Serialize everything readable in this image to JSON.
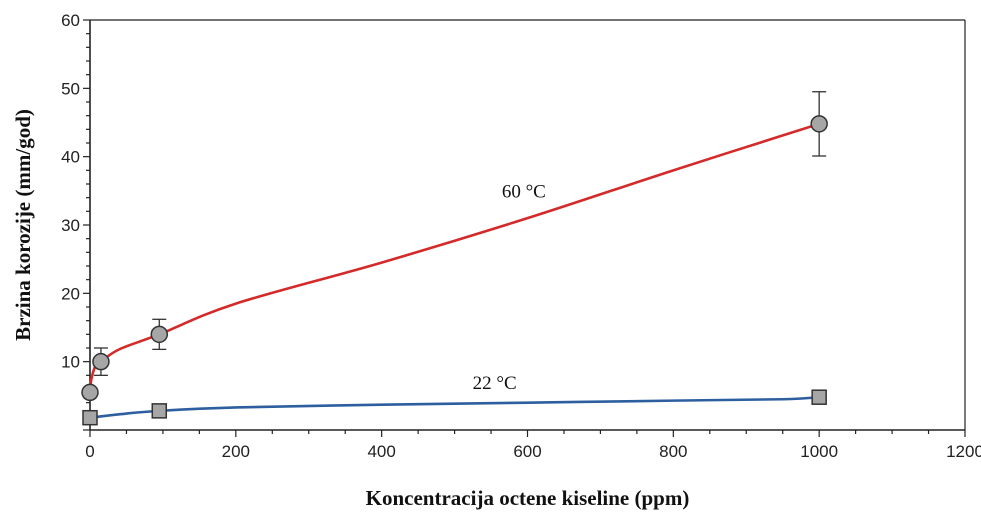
{
  "chart_data": {
    "type": "scatter",
    "xlabel": "Koncentracija octene kiseline (ppm)",
    "ylabel": "Brzina korozije (mm/god)",
    "xlim": [
      0,
      1200
    ],
    "ylim": [
      0,
      60
    ],
    "xticks": [
      0,
      200,
      400,
      600,
      800,
      1000,
      1200
    ],
    "yticks": [
      10,
      20,
      30,
      40,
      50,
      60
    ],
    "grid": false,
    "series": [
      {
        "name": "60 °C",
        "color": "#d42a2a",
        "marker": "circle",
        "points": [
          {
            "x": 0,
            "y": 5.5,
            "err": 0
          },
          {
            "x": 15,
            "y": 10,
            "err": 2
          },
          {
            "x": 95,
            "y": 14,
            "err": 2.2
          },
          {
            "x": 1000,
            "y": 44.8,
            "err": 4.7
          }
        ],
        "curve": [
          [
            0,
            5.5
          ],
          [
            2,
            7.5
          ],
          [
            8,
            9.5
          ],
          [
            15,
            10
          ],
          [
            40,
            11.8
          ],
          [
            95,
            14
          ],
          [
            200,
            18.5
          ],
          [
            400,
            24.5
          ],
          [
            600,
            31
          ],
          [
            800,
            38
          ],
          [
            1000,
            44.8
          ]
        ],
        "label_pos": {
          "x": 595,
          "y": 34
        }
      },
      {
        "name": "22 °C",
        "color": "#2d5fa0",
        "marker": "square",
        "points": [
          {
            "x": 0,
            "y": 1.8
          },
          {
            "x": 95,
            "y": 2.8
          },
          {
            "x": 1000,
            "y": 4.8
          }
        ],
        "curve": [
          [
            0,
            1.8
          ],
          [
            40,
            2.3
          ],
          [
            95,
            2.8
          ],
          [
            200,
            3.3
          ],
          [
            400,
            3.7
          ],
          [
            600,
            4.0
          ],
          [
            800,
            4.3
          ],
          [
            950,
            4.5
          ],
          [
            1000,
            4.8
          ]
        ],
        "label_pos": {
          "x": 555,
          "y": 6
        }
      }
    ]
  }
}
